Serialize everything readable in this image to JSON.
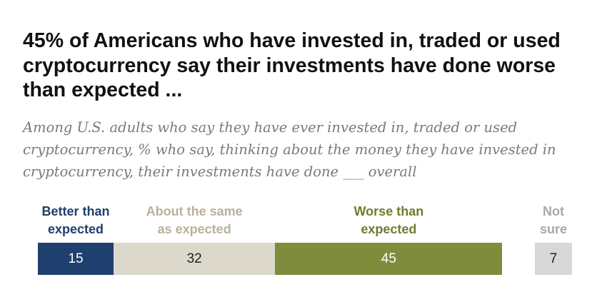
{
  "title": "45% of Americans who have invested in, traded or used cryptocurrency say their investments have done worse than expected ...",
  "subtitle": "Among U.S. adults who say they have ever invested in, traded or used cryptocurrency, % who say, thinking about the money they have invested in cryptocurrency, their investments have done ___ overall",
  "chart_data": {
    "type": "bar",
    "orientation": "horizontal-stacked",
    "title": "45% of Americans who have invested in, traded or used cryptocurrency say their investments have done worse than expected ...",
    "categories": [
      "Better than expected",
      "About the same as expected",
      "Worse than expected",
      "Not sure"
    ],
    "legend_lines": [
      [
        "Better than",
        "expected"
      ],
      [
        "About the same",
        "as expected"
      ],
      [
        "Worse than",
        "expected"
      ],
      [
        "Not",
        "sure"
      ]
    ],
    "values": [
      15,
      32,
      45,
      7
    ],
    "colors": [
      "#1f3f6e",
      "#dcd9cc",
      "#7f8c3c",
      "#d8d8d8"
    ],
    "label_colors": [
      "#ffffff",
      "#222222",
      "#ffffff",
      "#222222"
    ],
    "legend_colors": [
      "#1f3f6e",
      "#b9b29a",
      "#6f7d2e",
      "#a8a8a8"
    ],
    "xlabel": "",
    "ylabel": "",
    "grid": false
  }
}
